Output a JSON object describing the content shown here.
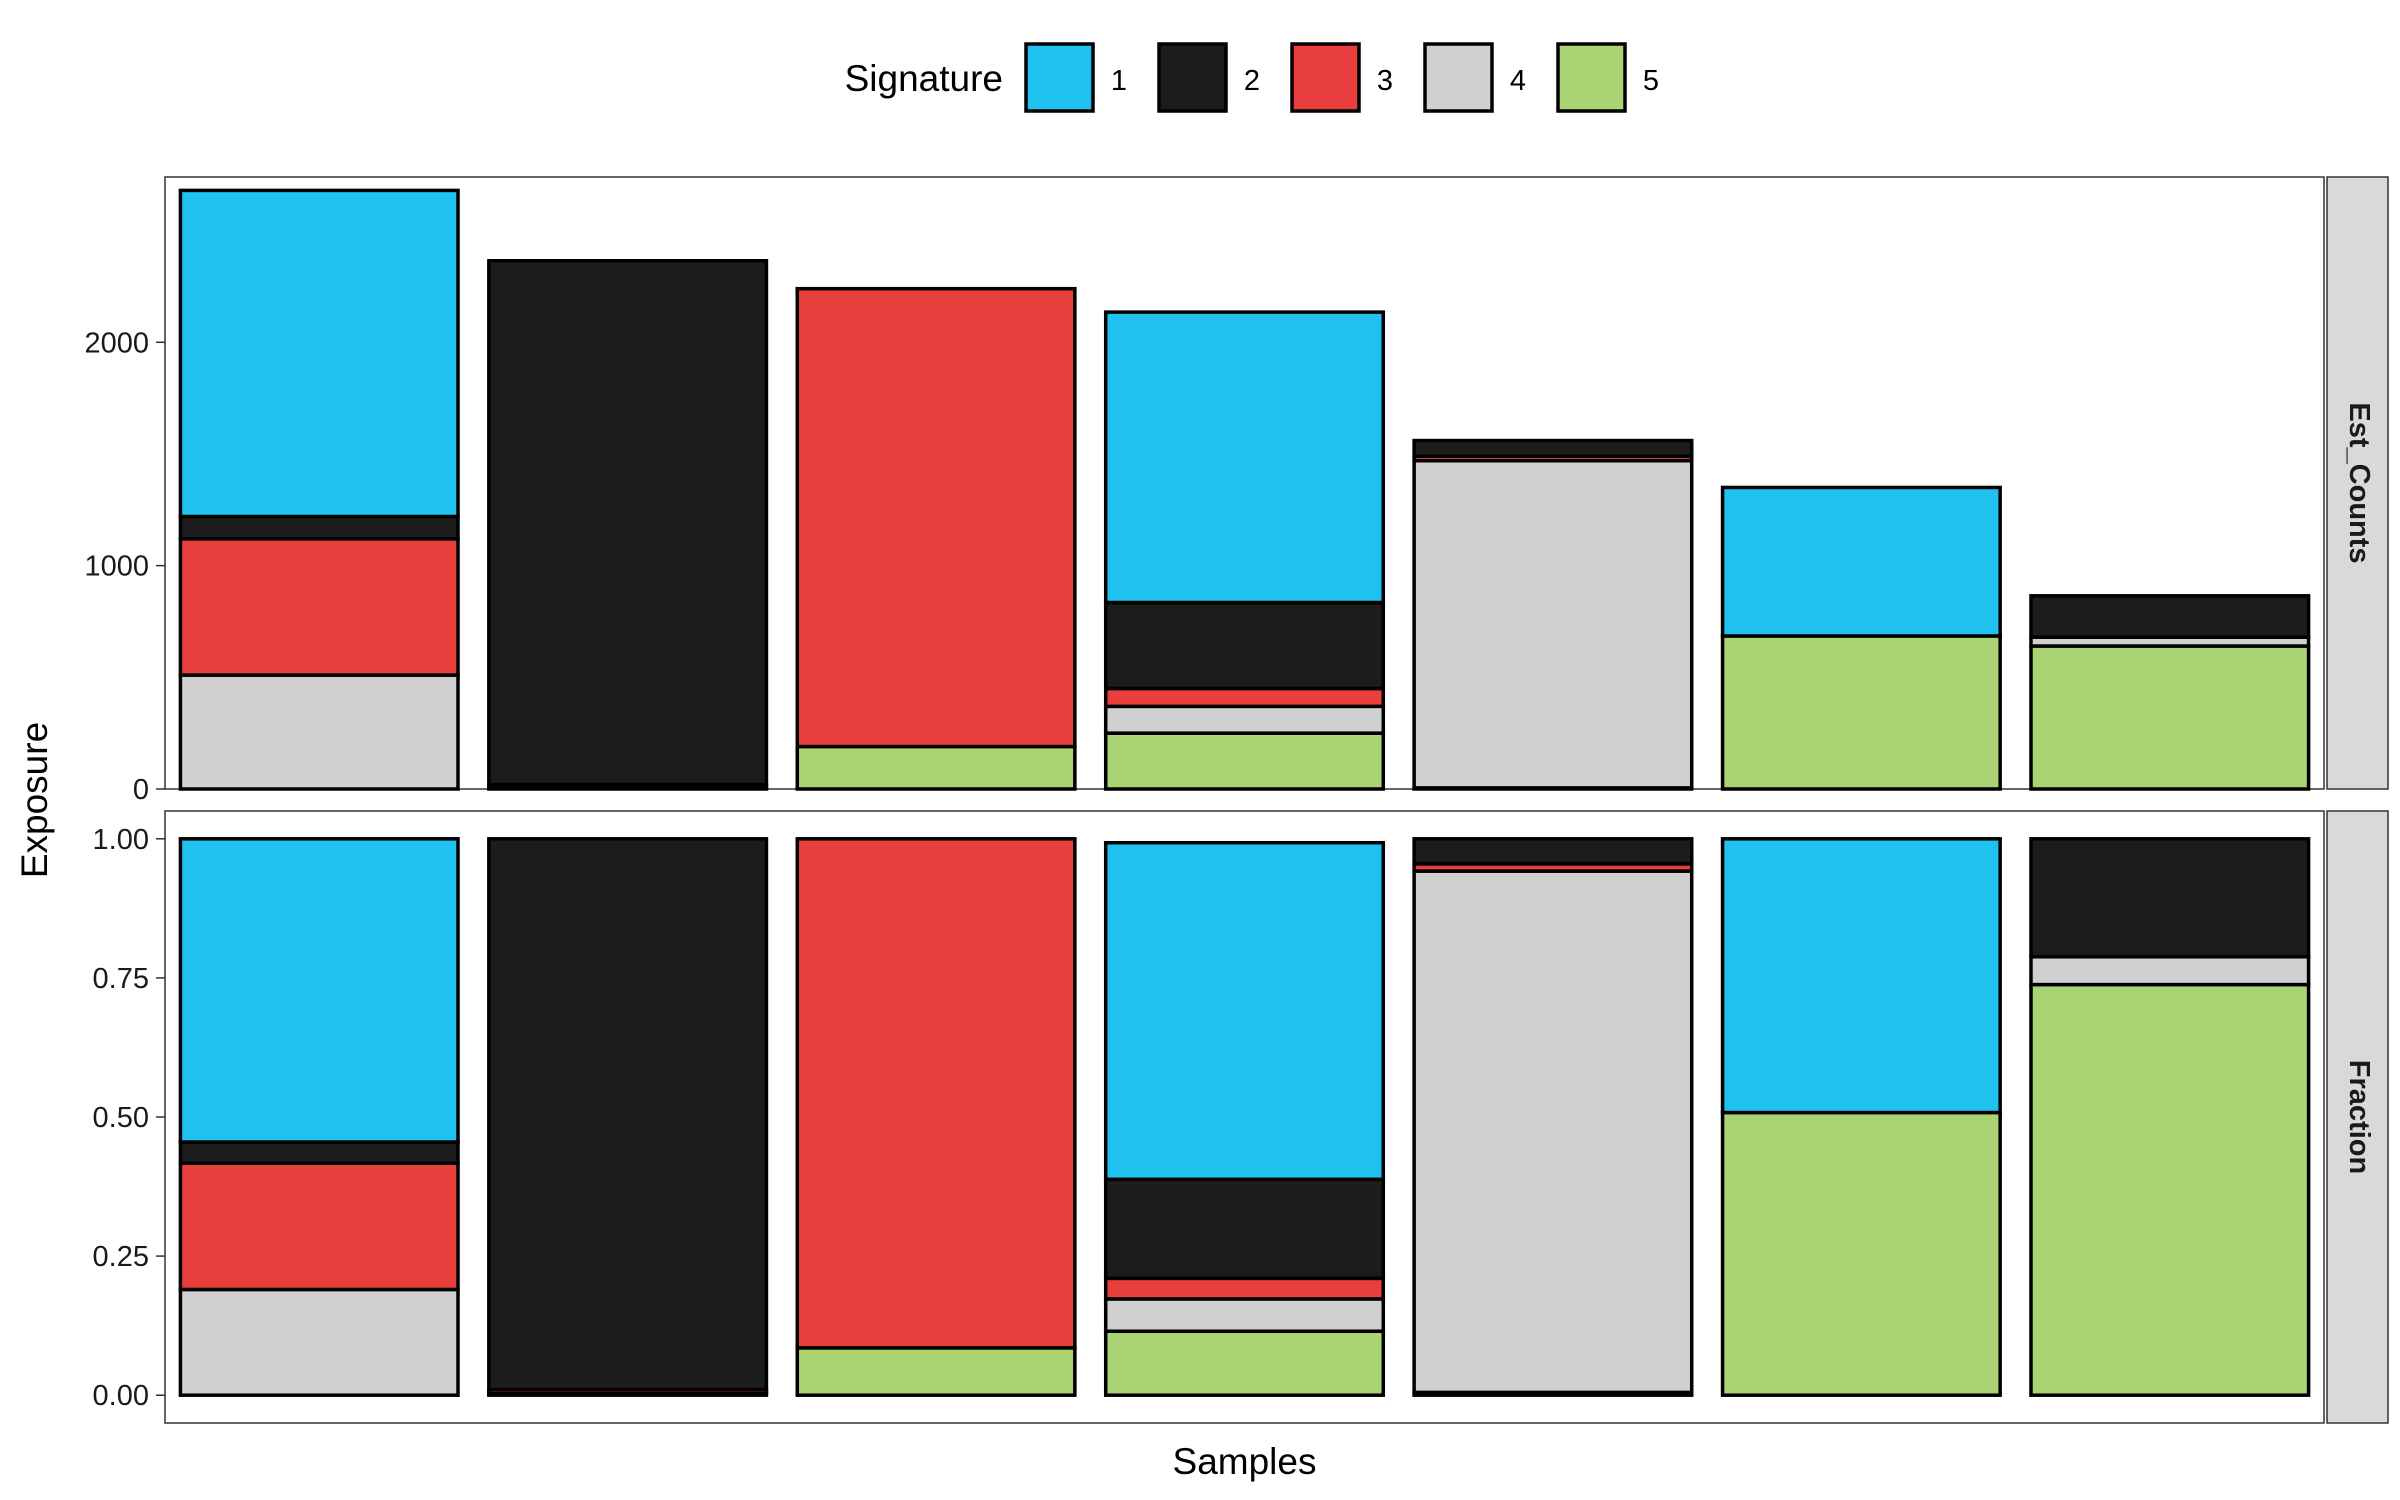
{
  "chart_data": {
    "type": "bar",
    "stacked": true,
    "xlabel": "Samples",
    "ylabel": "Exposure",
    "legend": {
      "title": "Signature",
      "position": "top",
      "entries": [
        "1",
        "2",
        "3",
        "4",
        "5"
      ]
    },
    "colors": {
      "1": "#1FC2EE",
      "2": "#1C1C1C",
      "3": "#E83E3C",
      "4": "#D0D0D0",
      "5": "#AAD473"
    },
    "stack_order_bottom_to_top": [
      "5",
      "4",
      "3",
      "2",
      "1"
    ],
    "grid": false,
    "panels": [
      {
        "strip": "Est_Counts",
        "ylim": [
          0,
          2740
        ],
        "yticks": [
          0,
          1000,
          2000
        ],
        "ytick_labels": [
          "0",
          "1000",
          "2000"
        ],
        "samples": [
          {
            "1": 1460,
            "2": 100,
            "3": 610,
            "4": 510,
            "5": 0
          },
          {
            "1": 0,
            "2": 2345,
            "3": 15,
            "4": 5,
            "5": 0
          },
          {
            "1": 0,
            "2": 0,
            "3": 2050,
            "4": 0,
            "5": 190
          },
          {
            "1": 1300,
            "2": 385,
            "3": 80,
            "4": 120,
            "5": 250
          },
          {
            "1": 0,
            "2": 70,
            "3": 20,
            "4": 1465,
            "5": 5
          },
          {
            "1": 665,
            "2": 0,
            "3": 0,
            "4": 0,
            "5": 685
          },
          {
            "1": 0,
            "2": 185,
            "3": 0,
            "4": 40,
            "5": 640
          }
        ]
      },
      {
        "strip": "Fraction",
        "ylim": [
          -0.05,
          1.05
        ],
        "yticks": [
          0,
          0.25,
          0.5,
          0.75,
          1
        ],
        "ytick_labels": [
          "0.00",
          "0.25",
          "0.50",
          "0.75",
          "1.00"
        ],
        "samples": [
          {
            "1": 0.545,
            "2": 0.038,
            "3": 0.227,
            "4": 0.19,
            "5": 0.0
          },
          {
            "1": 0.0,
            "2": 0.99,
            "3": 0.007,
            "4": 0.003,
            "5": 0.0
          },
          {
            "1": 0.0,
            "2": 0.0,
            "3": 0.915,
            "4": 0.0,
            "5": 0.085
          },
          {
            "1": 0.605,
            "2": 0.178,
            "3": 0.037,
            "4": 0.058,
            "5": 0.115
          },
          {
            "1": 0.0,
            "2": 0.045,
            "3": 0.013,
            "4": 0.937,
            "5": 0.005
          },
          {
            "1": 0.492,
            "2": 0.0,
            "3": 0.0,
            "4": 0.0,
            "5": 0.508
          },
          {
            "1": 0.0,
            "2": 0.212,
            "3": 0.0,
            "4": 0.05,
            "5": 0.738
          }
        ]
      }
    ]
  }
}
